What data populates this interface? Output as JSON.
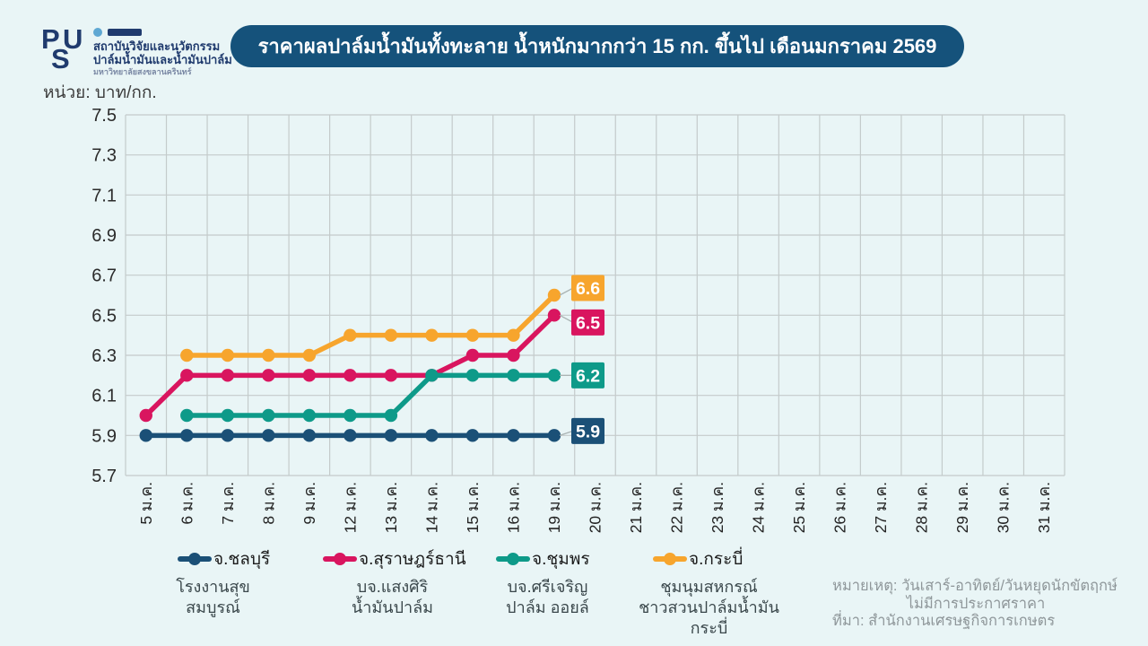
{
  "logo": {
    "letters": [
      "P",
      "S",
      "U"
    ],
    "line1": "สถาบันวิจัยและนวัตกรรม",
    "line2": "ปาล์มน้ำมันและน้ำมันปาล์ม",
    "line3": "มหาวิทยาลัยสงขลานครินทร์",
    "navy": "#203B6E",
    "accent": "#5FA8D3"
  },
  "title": {
    "text": "ราคาผลปาล์มน้ำมันทั้งทะลาย น้ำหนักมากกว่า 15 กก. ขึ้นไป เดือนมกราคม 2569",
    "bg": "#15527B",
    "color": "#FFFFFF"
  },
  "unit_label": "หน่วย: บาท/กก.",
  "chart_data": {
    "type": "line",
    "x": [
      "5 ม.ค.",
      "6 ม.ค.",
      "7 ม.ค.",
      "8 ม.ค.",
      "9 ม.ค.",
      "12 ม.ค.",
      "13 ม.ค.",
      "14 ม.ค.",
      "15 ม.ค.",
      "16 ม.ค.",
      "19 ม.ค.",
      "20 ม.ค.",
      "21 ม.ค.",
      "22 ม.ค.",
      "23 ม.ค.",
      "24 ม.ค.",
      "25 ม.ค.",
      "26 ม.ค.",
      "27 ม.ค.",
      "28 ม.ค.",
      "29 ม.ค.",
      "30 ม.ค.",
      "31 ม.ค."
    ],
    "xlabel": "",
    "ylabel": "บาท/กก.",
    "ylim": [
      5.7,
      7.5
    ],
    "ytick_step": 0.2,
    "grid": true,
    "legend_position": "bottom",
    "series": [
      {
        "name": "จ.ชลบุรี",
        "color": "#1B5077",
        "end_label": "5.9",
        "values": [
          5.9,
          5.9,
          5.9,
          5.9,
          5.9,
          5.9,
          5.9,
          5.9,
          5.9,
          5.9,
          5.9,
          null,
          null,
          null,
          null,
          null,
          null,
          null,
          null,
          null,
          null,
          null,
          null
        ]
      },
      {
        "name": "จ.สุราษฎร์ธานี",
        "color": "#D9155F",
        "end_label": "6.5",
        "values": [
          6.0,
          6.2,
          6.2,
          6.2,
          6.2,
          6.2,
          6.2,
          6.2,
          6.3,
          6.3,
          6.5,
          null,
          null,
          null,
          null,
          null,
          null,
          null,
          null,
          null,
          null,
          null,
          null
        ]
      },
      {
        "name": "จ.ชุมพร",
        "color": "#0E9A89",
        "end_label": "6.2",
        "values": [
          null,
          6.0,
          6.0,
          6.0,
          6.0,
          6.0,
          6.0,
          6.2,
          6.2,
          6.2,
          6.2,
          null,
          null,
          null,
          null,
          null,
          null,
          null,
          null,
          null,
          null,
          null,
          null
        ]
      },
      {
        "name": "จ.กระบี่",
        "color": "#F7A52D",
        "end_label": "6.6",
        "values": [
          null,
          6.3,
          6.3,
          6.3,
          6.3,
          6.4,
          6.4,
          6.4,
          6.4,
          6.4,
          6.6,
          null,
          null,
          null,
          null,
          null,
          null,
          null,
          null,
          null,
          null,
          null,
          null
        ]
      }
    ]
  },
  "legend": {
    "items": [
      {
        "sub": [
          "โรงงานสุข",
          "สมบูรณ์"
        ]
      },
      {
        "sub": [
          "บจ.แสงศิริ",
          "น้ำมันปาล์ม"
        ]
      },
      {
        "sub": [
          "บจ.ศรีเจริญ",
          "ปาล์ม ออยล์"
        ]
      },
      {
        "sub": [
          "ชุมนุมสหกรณ์",
          "ชาวสวนปาล์มน้ำมัน",
          "กระบี่"
        ]
      }
    ]
  },
  "notes": {
    "line1": "หมายเหตุ: วันเสาร์-อาทิตย์/วันหยุดนักขัตฤกษ์",
    "line2": "ไม่มีการประกาศราคา",
    "line3": "ที่มา: สำนักงานเศรษฐกิจการเกษตร"
  }
}
